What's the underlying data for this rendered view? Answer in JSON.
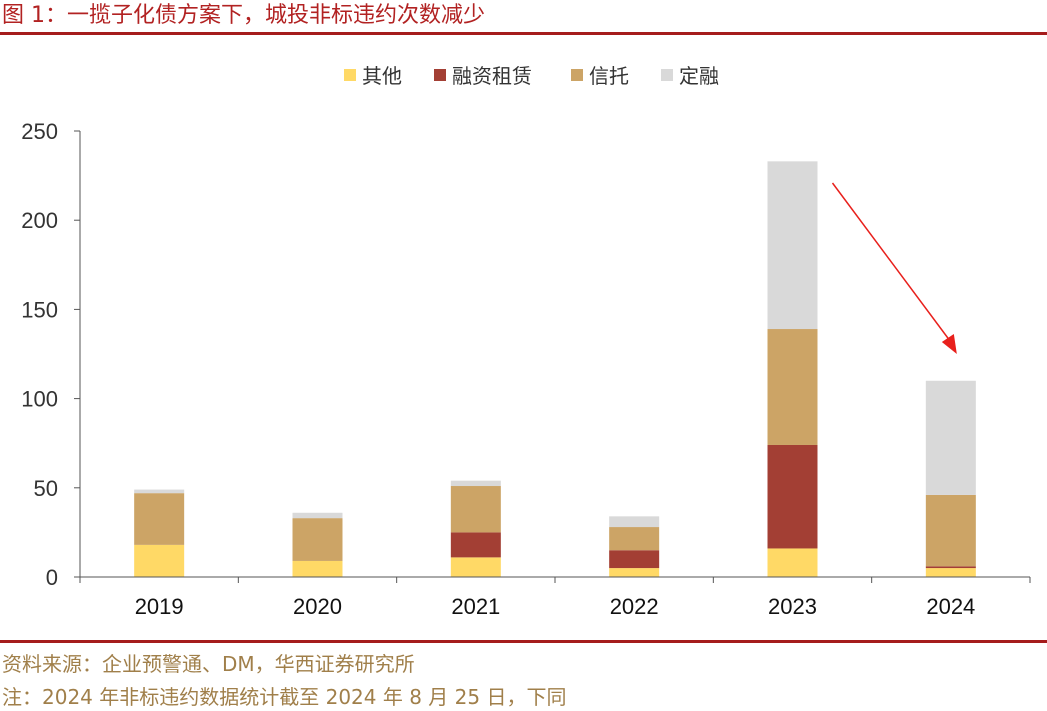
{
  "figure": {
    "title": "图 1：一揽子化债方案下，城投非标违约次数减少",
    "source": "资料来源：企业预警通、DM，华西证券研究所",
    "note": "注：2024 年非标违约数据统计截至 2024 年 8 月 25 日，下同"
  },
  "colors": {
    "rule": "#a51c1c",
    "title": "#b22222",
    "footer": "#a07f4a",
    "arrow": "#e8201c"
  },
  "chart_data": {
    "type": "bar",
    "stacked": true,
    "title": "",
    "xlabel": "",
    "ylabel": "",
    "categories": [
      "2019",
      "2020",
      "2021",
      "2022",
      "2023",
      "2024"
    ],
    "ylim": [
      0,
      250
    ],
    "yticks": [
      "0",
      "50",
      "100",
      "150",
      "200",
      "250"
    ],
    "legend_position": "top-center",
    "series": [
      {
        "name": "其他",
        "color": "#ffd966",
        "values": [
          18,
          9,
          11,
          5,
          16,
          5
        ]
      },
      {
        "name": "融资租赁",
        "color": "#a33f34",
        "values": [
          0,
          0,
          14,
          10,
          58,
          1
        ]
      },
      {
        "name": "信托",
        "color": "#cca466",
        "values": [
          29,
          24,
          26,
          13,
          65,
          40
        ]
      },
      {
        "name": "定融",
        "color": "#d9d9d9",
        "values": [
          2,
          3,
          3,
          6,
          94,
          64
        ]
      }
    ],
    "annotation": {
      "type": "arrow",
      "from_category": "2023",
      "to_category": "2024",
      "meaning": "decrease"
    }
  }
}
